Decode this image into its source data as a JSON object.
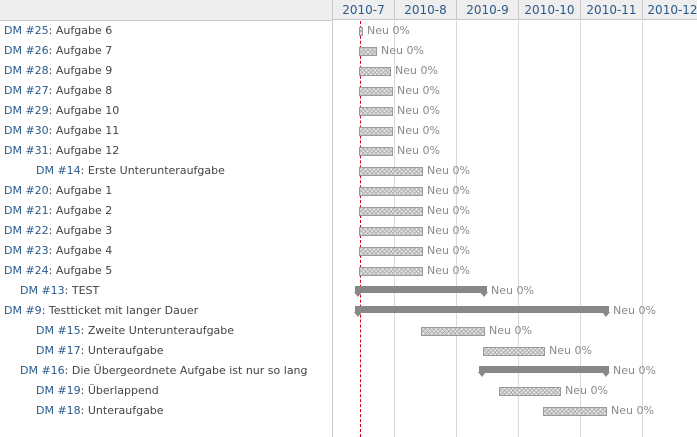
{
  "months": [
    "2010-7",
    "2010-8",
    "2010-9",
    "2010-10",
    "2010-11",
    "2010-12"
  ],
  "rows": [
    {
      "id": "DM #25",
      "subject": "Aufgabe 6",
      "level": 0,
      "status": "Neu 0%",
      "type": "task"
    },
    {
      "id": "DM #26",
      "subject": "Aufgabe 7",
      "level": 0,
      "status": "Neu 0%",
      "type": "task"
    },
    {
      "id": "DM #28",
      "subject": "Aufgabe 9",
      "level": 0,
      "status": "Neu 0%",
      "type": "task"
    },
    {
      "id": "DM #27",
      "subject": "Aufgabe 8",
      "level": 0,
      "status": "Neu 0%",
      "type": "task"
    },
    {
      "id": "DM #29",
      "subject": "Aufgabe 10",
      "level": 0,
      "status": "Neu 0%",
      "type": "task"
    },
    {
      "id": "DM #30",
      "subject": "Aufgabe 11",
      "level": 0,
      "status": "Neu 0%",
      "type": "task"
    },
    {
      "id": "DM #31",
      "subject": "Aufgabe 12",
      "level": 0,
      "status": "Neu 0%",
      "type": "task"
    },
    {
      "id": "DM #14",
      "subject": "Erste Unterunteraufgabe",
      "level": 2,
      "status": "Neu 0%",
      "type": "task"
    },
    {
      "id": "DM #20",
      "subject": "Aufgabe 1",
      "level": 0,
      "status": "Neu 0%",
      "type": "task"
    },
    {
      "id": "DM #21",
      "subject": "Aufgabe 2",
      "level": 0,
      "status": "Neu 0%",
      "type": "task"
    },
    {
      "id": "DM #22",
      "subject": "Aufgabe 3",
      "level": 0,
      "status": "Neu 0%",
      "type": "task"
    },
    {
      "id": "DM #23",
      "subject": "Aufgabe 4",
      "level": 0,
      "status": "Neu 0%",
      "type": "task"
    },
    {
      "id": "DM #24",
      "subject": "Aufgabe 5",
      "level": 0,
      "status": "Neu 0%",
      "type": "task"
    },
    {
      "id": "DM #13",
      "subject": "TEST",
      "level": 1,
      "status": "Neu 0%",
      "type": "parent"
    },
    {
      "id": "DM #9",
      "subject": "Testticket mit langer Dauer",
      "level": 0,
      "status": "Neu 0%",
      "type": "parent"
    },
    {
      "id": "DM #15",
      "subject": "Zweite Unterunteraufgabe",
      "level": 2,
      "status": "Neu 0%",
      "type": "task"
    },
    {
      "id": "DM #17",
      "subject": "Unteraufgabe",
      "level": 2,
      "status": "Neu 0%",
      "type": "task"
    },
    {
      "id": "DM #16",
      "subject": "Die Übergeordnete Aufgabe ist nur so lang",
      "level": 1,
      "status": "Neu 0%",
      "type": "parent"
    },
    {
      "id": "DM #19",
      "subject": "Überlappend",
      "level": 2,
      "status": "Neu 0%",
      "type": "task"
    },
    {
      "id": "DM #18",
      "subject": "Unteraufgabe",
      "level": 2,
      "status": "Neu 0%",
      "type": "task"
    }
  ]
}
